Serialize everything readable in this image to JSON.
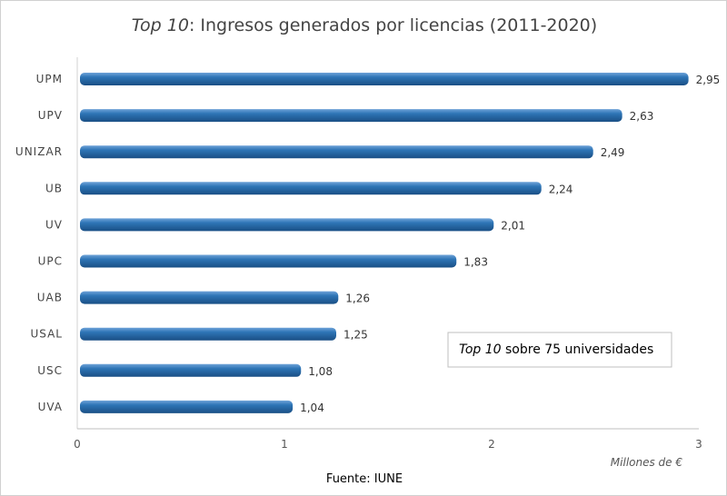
{
  "chart_data": {
    "type": "bar",
    "orientation": "horizontal",
    "title_italic": "Top 10",
    "title_rest": ": Ingresos generados por licencias (2011-2020)",
    "categories": [
      "UPM",
      "UPV",
      "UNIZAR",
      "UB",
      "UV",
      "UPC",
      "UAB",
      "USAL",
      "USC",
      "UVA"
    ],
    "values": [
      2.95,
      2.63,
      2.49,
      2.24,
      2.01,
      1.83,
      1.26,
      1.25,
      1.08,
      1.04
    ],
    "value_labels": [
      "2,95",
      "2,63",
      "2,49",
      "2,24",
      "2,01",
      "1,83",
      "1,26",
      "1,25",
      "1,08",
      "1,04"
    ],
    "xlim": [
      0,
      3
    ],
    "x_ticks": [
      "0",
      "1",
      "2",
      "3"
    ],
    "xlabel": "Millones de €",
    "annotation_italic": "Top 10",
    "annotation_rest": " sobre 75 universidades",
    "source": "Fuente: IUNE",
    "bar_color": "#2e75b6"
  }
}
